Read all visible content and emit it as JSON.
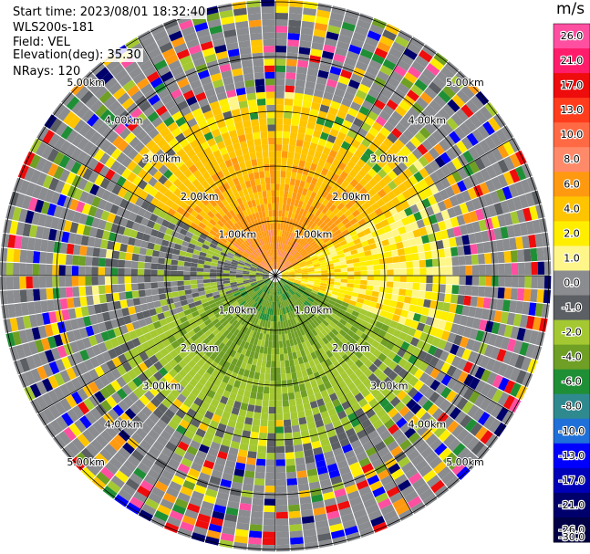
{
  "header": {
    "start_time": "Start time: 2023/08/01 18:32:40",
    "instrument": "WLS200s-181",
    "field": "Field: VEL",
    "elevation": "Elevation(deg): 35.30",
    "nrays": "NRays: 120"
  },
  "colorbar": {
    "unit": "m/s",
    "levels": [
      {
        "label": "26.0",
        "color": "#ff4fa0"
      },
      {
        "label": "21.0",
        "color": "#ff1c6a"
      },
      {
        "label": "17.0",
        "color": "#ee0c0c"
      },
      {
        "label": "13.0",
        "color": "#ff3c1c"
      },
      {
        "label": "10.0",
        "color": "#ff6a44"
      },
      {
        "label": "8.0",
        "color": "#ff8a6a"
      },
      {
        "label": "6.0",
        "color": "#ff9a10"
      },
      {
        "label": "4.0",
        "color": "#ffc400"
      },
      {
        "label": "2.0",
        "color": "#ffee00"
      },
      {
        "label": "1.0",
        "color": "#fff68a"
      },
      {
        "label": "0.0",
        "color": "#8a8c90"
      },
      {
        "label": "-1.0",
        "color": "#5c5f63"
      },
      {
        "label": "-2.0",
        "color": "#a4c832"
      },
      {
        "label": "-4.0",
        "color": "#6f9f24"
      },
      {
        "label": "-6.0",
        "color": "#1f8f36"
      },
      {
        "label": "-8.0",
        "color": "#2f8a90"
      },
      {
        "label": "-10.0",
        "color": "#1f70d8"
      },
      {
        "label": "-13.0",
        "color": "#0000ff"
      },
      {
        "label": "-17.0",
        "color": "#0000b8"
      },
      {
        "label": "-21.0",
        "color": "#00006c"
      },
      {
        "label": "-26.0",
        "color": "#000046"
      },
      {
        "label": "-30.0",
        "color": "#ffffff"
      }
    ]
  },
  "chart_data": {
    "type": "polar-ppi",
    "field": "VEL",
    "units": "m/s",
    "elevation_deg": 35.3,
    "n_rays": 120,
    "max_range_km": 5.0,
    "ring_labels": [
      "1.00km",
      "2.00km",
      "3.00km",
      "4.00km",
      "5.00km"
    ],
    "spoke_step_deg": 30,
    "sectors": [
      {
        "bearing_from": 300,
        "bearing_to": 60,
        "velocity_near_ms": 6.0,
        "velocity_far_ms": 2.0
      },
      {
        "bearing_from": 60,
        "bearing_to": 110,
        "velocity_near_ms": 2.0,
        "velocity_far_ms": 1.0
      },
      {
        "bearing_from": 110,
        "bearing_to": 250,
        "velocity_near_ms": -6.0,
        "velocity_far_ms": -2.0
      },
      {
        "bearing_from": 250,
        "bearing_to": 300,
        "velocity_near_ms": -2.0,
        "velocity_far_ms": -1.0
      }
    ]
  }
}
